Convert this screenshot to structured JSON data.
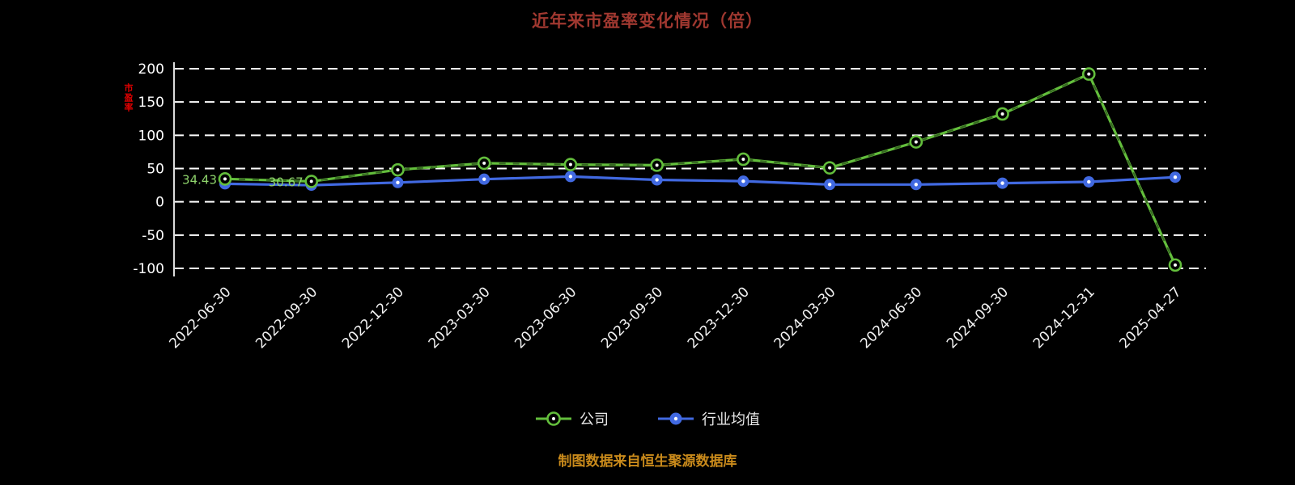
{
  "title": "近年来市盈率变化情况（倍）",
  "y_axis_title": "市盈率",
  "footer": "制图数据来自恒生聚源数据库",
  "colors": {
    "title": "#A03830",
    "footer": "#C98A1B",
    "y_axis_title": "#E00000",
    "grid": "#FFFFFF",
    "tick_labels": "#FFFFFF",
    "background": "#000000",
    "company": "#63BE3C",
    "industry": "#4169E1"
  },
  "legend": [
    {
      "label": "公司"
    },
    {
      "label": "行业均值"
    }
  ],
  "chart_data": {
    "type": "line",
    "title": "近年来市盈率变化情况（倍）",
    "categories": [
      "2022-06-30",
      "2022-09-30",
      "2022-12-30",
      "2023-03-30",
      "2023-06-30",
      "2023-09-30",
      "2023-12-30",
      "2024-03-30",
      "2024-06-30",
      "2024-09-30",
      "2024-12-31",
      "2025-04-27"
    ],
    "series": [
      {
        "name": "公司",
        "color": "#63BE3C",
        "marker": "ring",
        "values": [
          34.43,
          30.67,
          48,
          58,
          56,
          55,
          64,
          51,
          90,
          132,
          192,
          -95
        ],
        "point_labels": {
          "0": "34.43",
          "1": "30.67"
        }
      },
      {
        "name": "行业均值",
        "color": "#4169E1",
        "marker": "solid",
        "values": [
          27,
          25,
          29,
          34,
          38,
          33,
          31,
          26,
          26,
          28,
          30,
          37
        ]
      }
    ],
    "ylim": [
      -100,
      200
    ],
    "yticks": [
      200,
      150,
      100,
      50,
      0,
      -50,
      -100
    ],
    "grid": "horizontal-dashed",
    "legend_position": "bottom"
  }
}
